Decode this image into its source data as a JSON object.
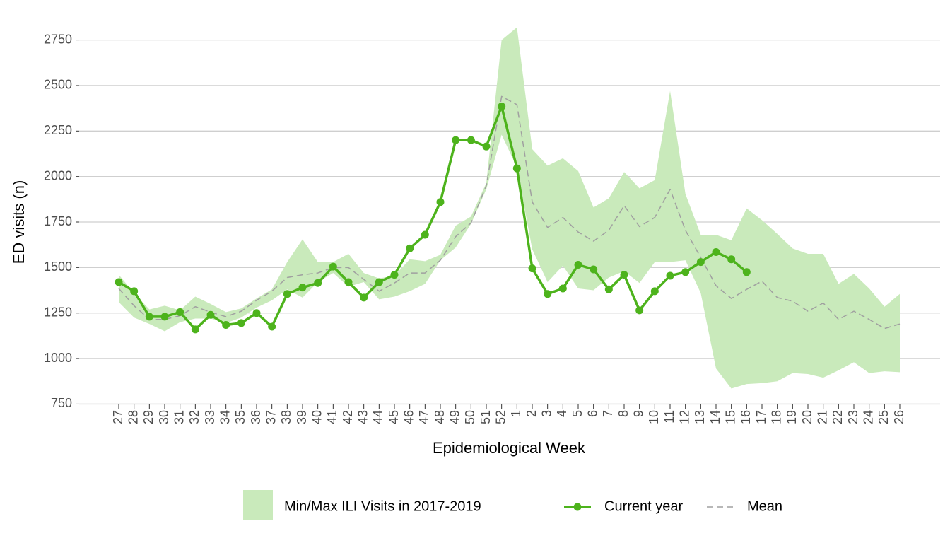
{
  "chart_data": {
    "type": "line",
    "x_label": "Epidemiological Week",
    "y_label": "ED visits (n)",
    "categories": [
      "27",
      "28",
      "29",
      "30",
      "31",
      "32",
      "33",
      "34",
      "35",
      "36",
      "37",
      "38",
      "39",
      "40",
      "41",
      "42",
      "43",
      "44",
      "45",
      "46",
      "47",
      "48",
      "49",
      "50",
      "51",
      "52",
      "1",
      "2",
      "3",
      "4",
      "5",
      "6",
      "7",
      "8",
      "9",
      "10",
      "11",
      "12",
      "13",
      "14",
      "15",
      "16",
      "17",
      "18",
      "19",
      "20",
      "21",
      "22",
      "23",
      "24",
      "25",
      "26"
    ],
    "band": {
      "name": "Min/Max ILI Visits in 2017-2019",
      "color": "#c9eabb",
      "max": [
        1460,
        1360,
        1270,
        1290,
        1265,
        1340,
        1300,
        1255,
        1275,
        1330,
        1380,
        1530,
        1655,
        1530,
        1530,
        1575,
        1470,
        1440,
        1455,
        1545,
        1535,
        1570,
        1730,
        1780,
        1965,
        2750,
        2820,
        2150,
        2060,
        2100,
        2030,
        1830,
        1880,
        2025,
        1935,
        1980,
        2470,
        1905,
        1680,
        1680,
        1650,
        1825,
        1760,
        1685,
        1605,
        1575,
        1575,
        1410,
        1465,
        1385,
        1285,
        1355
      ],
      "min": [
        1310,
        1225,
        1190,
        1150,
        1200,
        1220,
        1220,
        1195,
        1225,
        1280,
        1320,
        1380,
        1335,
        1420,
        1470,
        1395,
        1420,
        1325,
        1340,
        1370,
        1410,
        1540,
        1610,
        1740,
        1930,
        2230,
        2050,
        1600,
        1420,
        1510,
        1385,
        1375,
        1445,
        1480,
        1415,
        1530,
        1530,
        1540,
        1360,
        945,
        835,
        860,
        865,
        875,
        920,
        915,
        895,
        935,
        980,
        920,
        930,
        925
      ]
    },
    "series": [
      {
        "name": "Current year",
        "color": "#4db31c",
        "style": "solid",
        "markers": true,
        "values": [
          1420,
          1370,
          1230,
          1230,
          1255,
          1160,
          1240,
          1185,
          1195,
          1250,
          1175,
          1355,
          1390,
          1415,
          1505,
          1420,
          1335,
          1420,
          1460,
          1605,
          1680,
          1860,
          2200,
          2200,
          2165,
          2385,
          2045,
          1495,
          1355,
          1385,
          1515,
          1490,
          1380,
          1460,
          1265,
          1370,
          1455,
          1475,
          1530,
          1585,
          1545,
          1475,
          null,
          null,
          null,
          null,
          null,
          null,
          null,
          null,
          null,
          null
        ]
      },
      {
        "name": "Mean",
        "color": "#a0a0a0",
        "style": "dashed",
        "markers": false,
        "values": [
          1385,
          1290,
          1215,
          1215,
          1235,
          1285,
          1255,
          1230,
          1260,
          1320,
          1370,
          1445,
          1460,
          1470,
          1500,
          1500,
          1435,
          1370,
          1415,
          1470,
          1470,
          1540,
          1670,
          1745,
          1950,
          2440,
          2395,
          1860,
          1720,
          1775,
          1695,
          1645,
          1705,
          1840,
          1725,
          1775,
          1930,
          1705,
          1555,
          1400,
          1330,
          1380,
          1425,
          1335,
          1315,
          1260,
          1305,
          1215,
          1260,
          1215,
          1165,
          1190
        ]
      }
    ],
    "ylim": [
      740,
      2830
    ],
    "yticks": [
      750,
      1000,
      1250,
      1500,
      1750,
      2000,
      2250,
      2500,
      2750
    ],
    "grid": true,
    "legend": "bottom"
  }
}
